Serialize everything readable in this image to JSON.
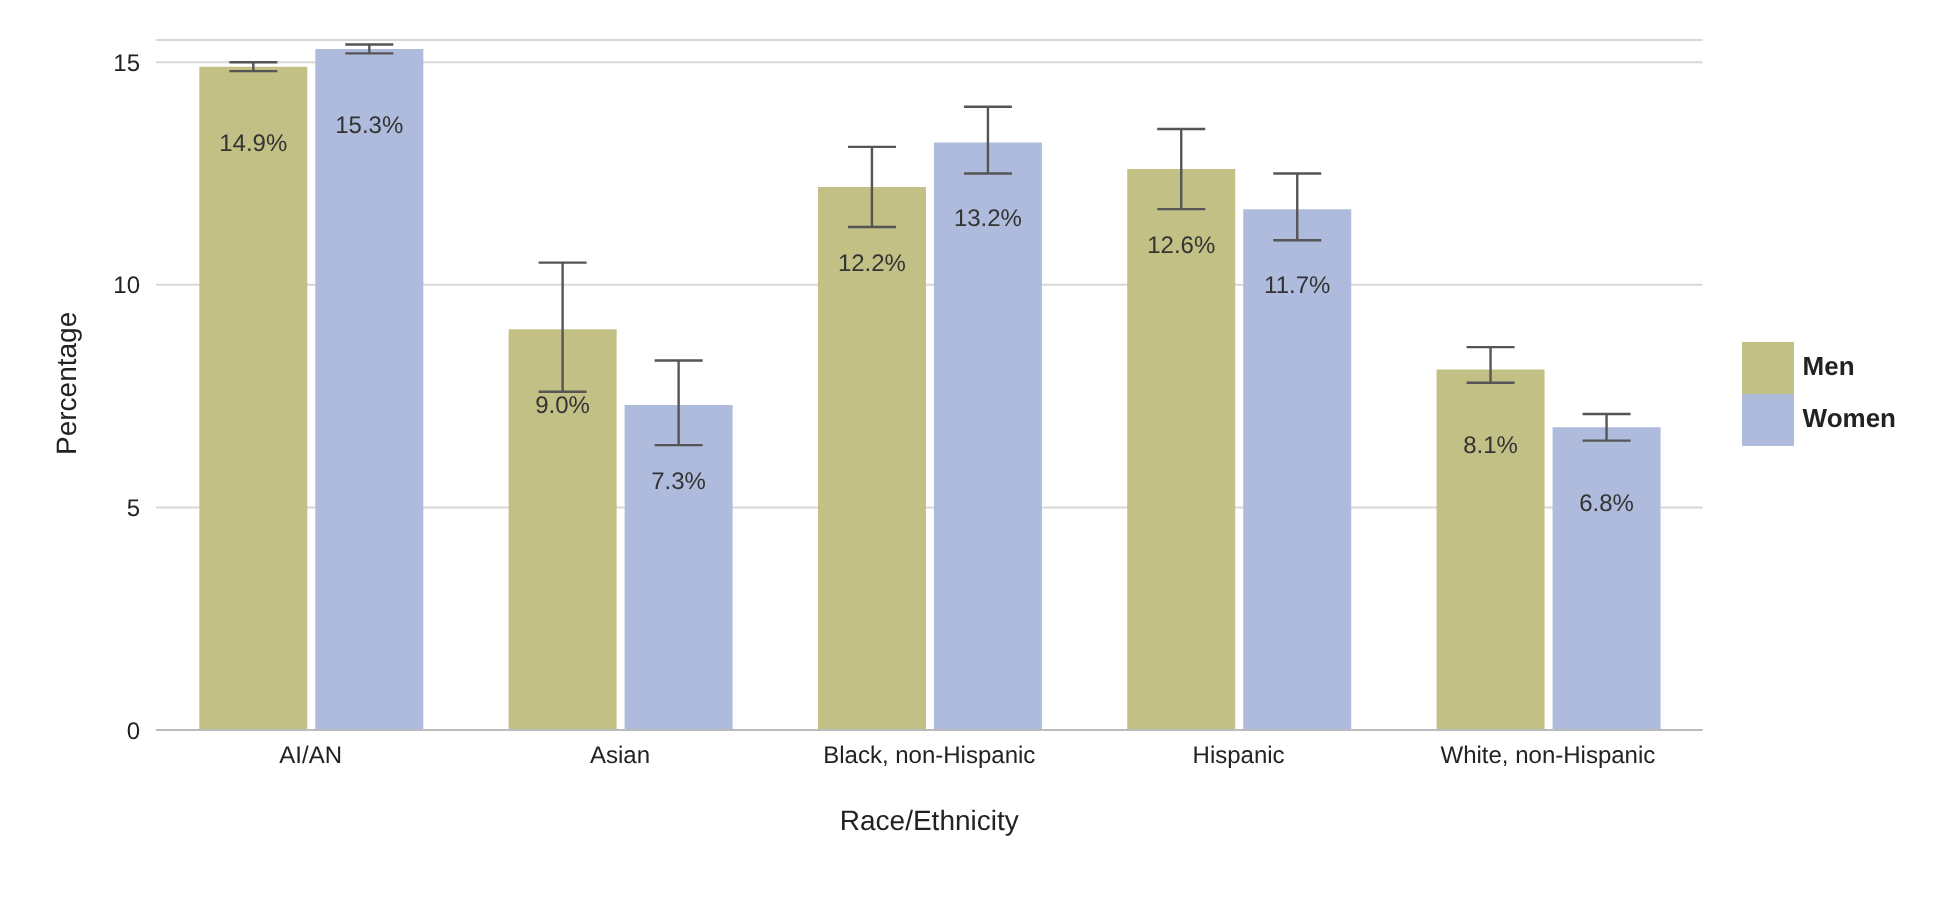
{
  "chart_data": {
    "type": "bar",
    "xlabel": "Race/Ethnicity",
    "ylabel": "Percentage",
    "categories": [
      "AI/AN",
      "Asian",
      "Black, non-Hispanic",
      "Hispanic",
      "White, non-Hispanic"
    ],
    "series": [
      {
        "name": "Men",
        "color": "#c2c084",
        "values": [
          14.9,
          9.0,
          12.2,
          12.6,
          8.1
        ],
        "value_labels": [
          "14.9%",
          "9.0%",
          "12.2%",
          "12.6%",
          "8.1%"
        ],
        "errors": [
          [
            14.8,
            15.0
          ],
          [
            7.6,
            10.5
          ],
          [
            11.3,
            13.1
          ],
          [
            11.7,
            13.5
          ],
          [
            7.8,
            8.6
          ]
        ]
      },
      {
        "name": "Women",
        "color": "#aebbdc",
        "values": [
          15.3,
          7.3,
          13.2,
          11.7,
          6.8
        ],
        "value_labels": [
          "15.3%",
          "7.3%",
          "13.2%",
          "11.7%",
          "6.8%"
        ],
        "errors": [
          [
            15.2,
            15.4
          ],
          [
            6.4,
            8.3
          ],
          [
            12.5,
            14.0
          ],
          [
            11.0,
            12.5
          ],
          [
            6.5,
            7.1
          ]
        ]
      }
    ],
    "ylim": [
      0,
      15.5
    ],
    "yticks": [
      0,
      5,
      10,
      15
    ],
    "grid": "y",
    "legend": "right"
  }
}
